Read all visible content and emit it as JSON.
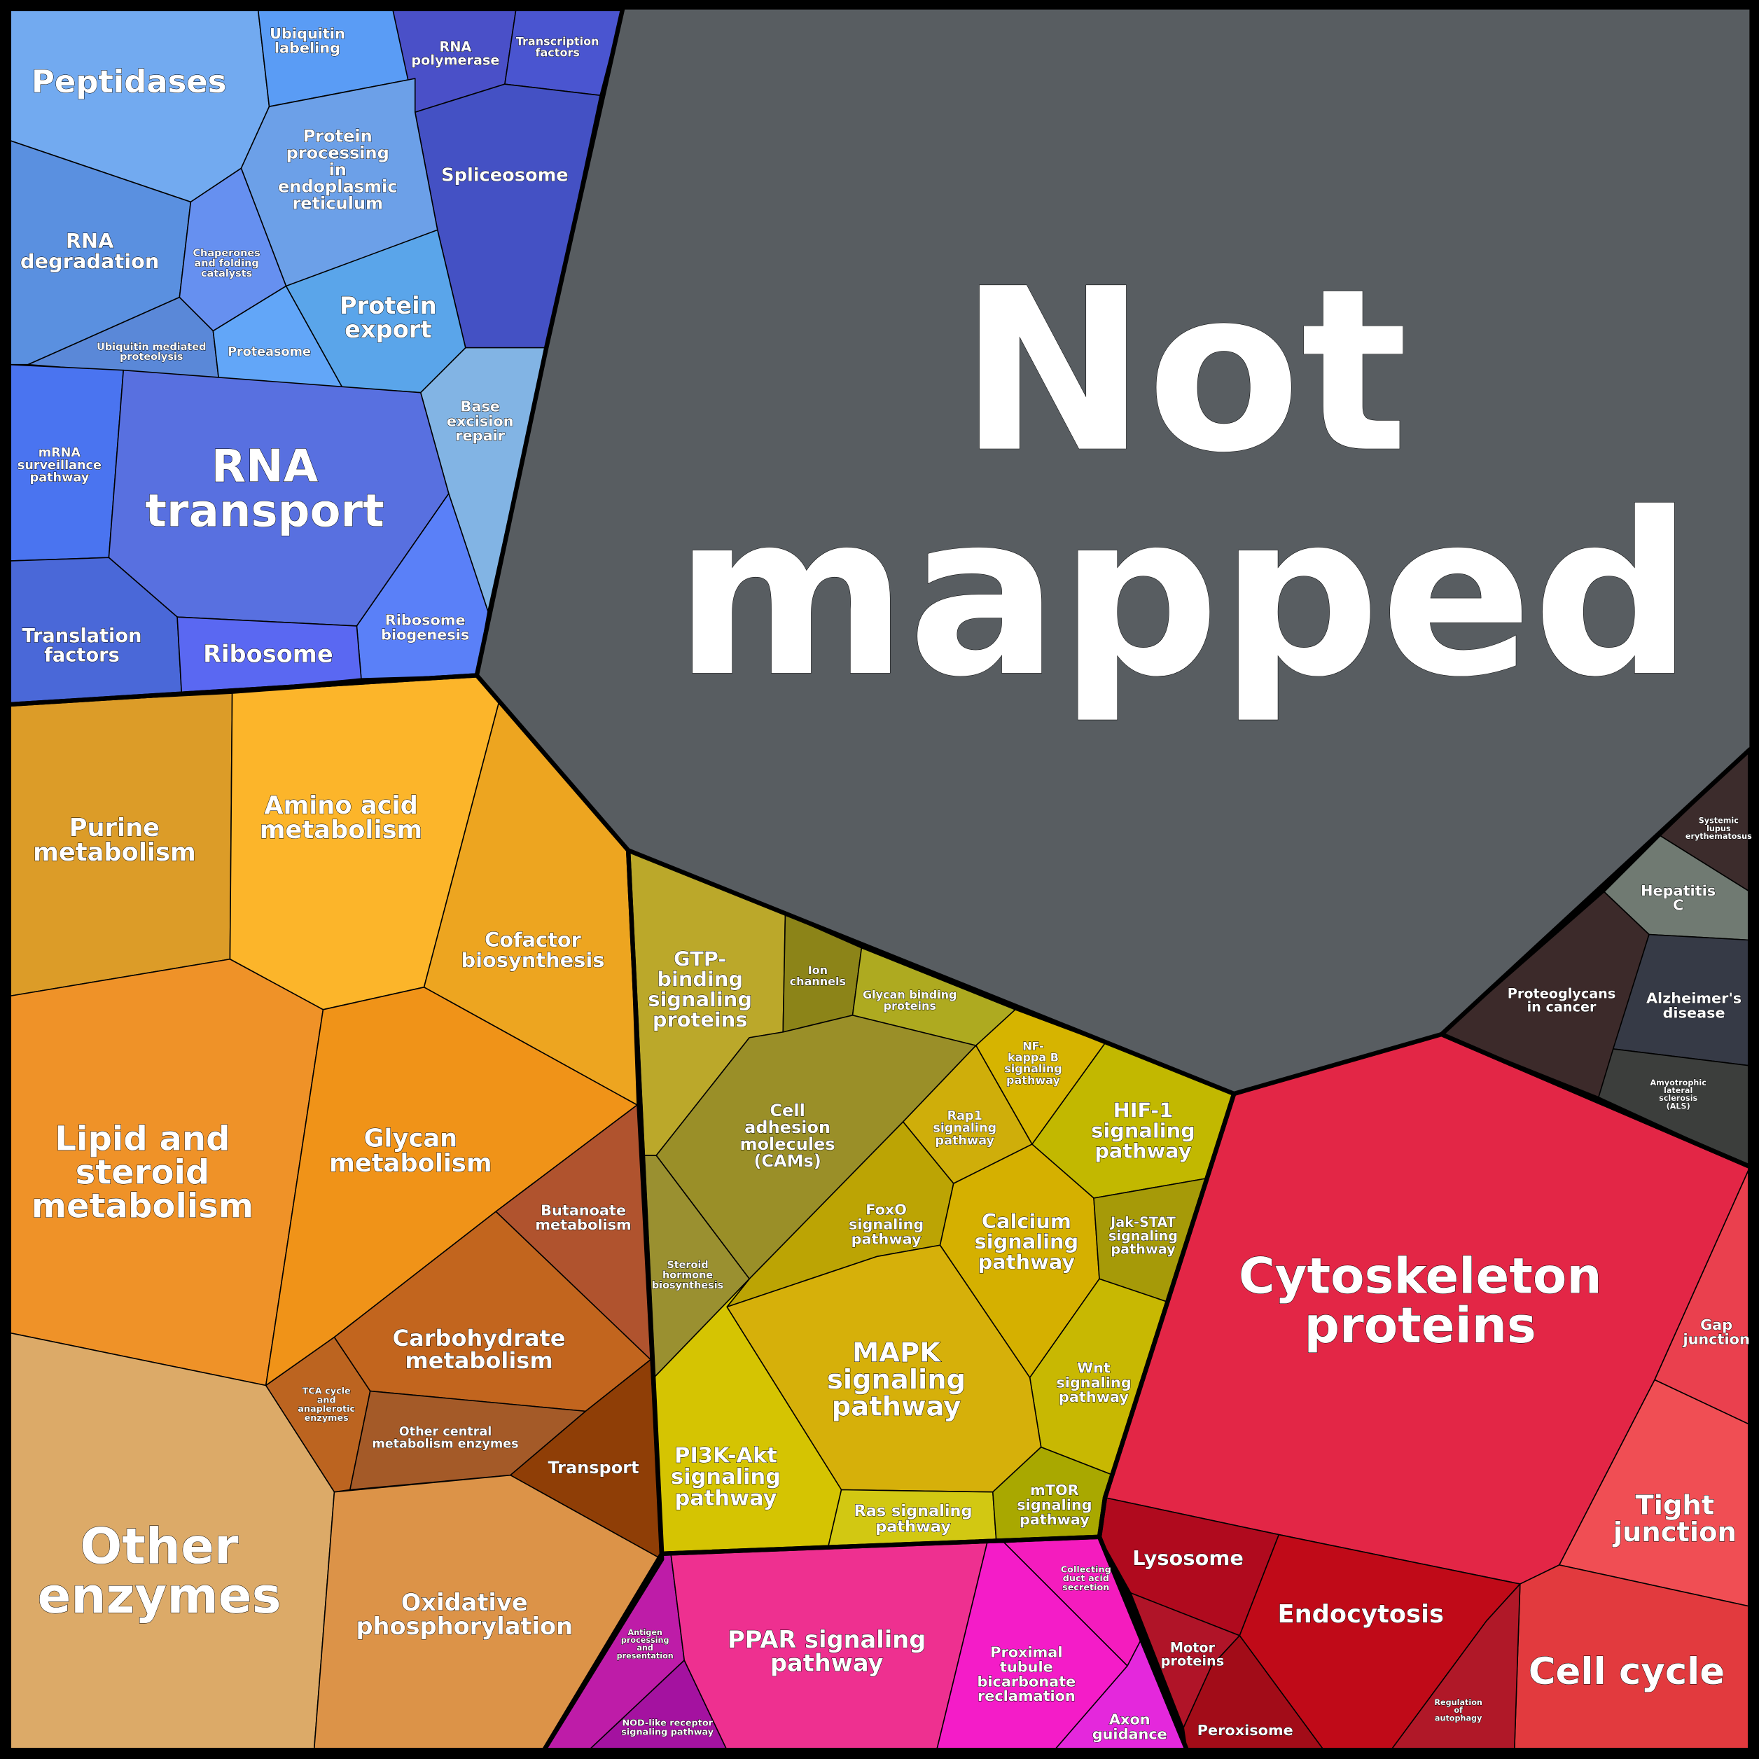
{
  "cells": [
    {
      "label": [
        "Peptidases"
      ]
    },
    {
      "label": [
        "Ubiquitin",
        "labeling"
      ]
    },
    {
      "label": [
        "RNA",
        "polymerase"
      ]
    },
    {
      "label": [
        "Transcription",
        "factors"
      ]
    },
    {
      "label": [
        "Spliceosome"
      ]
    },
    {
      "label": [
        "Protein",
        "processing",
        "in",
        "endoplasmic",
        "reticulum"
      ]
    },
    {
      "label": [
        "RNA",
        "degradation"
      ]
    },
    {
      "label": [
        "Chaperones",
        "and folding",
        "catalysts"
      ]
    },
    {
      "label": [
        "Ubiquitin mediated",
        "proteolysis"
      ]
    },
    {
      "label": [
        "Proteasome"
      ]
    },
    {
      "label": [
        "Protein",
        "export"
      ]
    },
    {
      "label": [
        "Base",
        "excision",
        "repair"
      ]
    },
    {
      "label": [
        "mRNA",
        "surveillance",
        "pathway"
      ]
    },
    {
      "label": [
        "RNA",
        "transport"
      ]
    },
    {
      "label": [
        "Ribosome",
        "biogenesis"
      ]
    },
    {
      "label": [
        "Translation",
        "factors"
      ]
    },
    {
      "label": [
        "Ribosome"
      ]
    },
    {
      "label": [
        "Purine",
        "metabolism"
      ]
    },
    {
      "label": [
        "Amino acid",
        "metabolism"
      ]
    },
    {
      "label": [
        "Cofactor",
        "biosynthesis"
      ]
    },
    {
      "label": [
        "Lipid and",
        "steroid",
        "metabolism"
      ]
    },
    {
      "label": [
        "Glycan",
        "metabolism"
      ]
    },
    {
      "label": [
        "Butanoate",
        "metabolism"
      ]
    },
    {
      "label": [
        "Carbohydrate",
        "metabolism"
      ]
    },
    {
      "label": [
        "TCA cycle",
        "and",
        "anaplerotic",
        "enzymes"
      ]
    },
    {
      "label": [
        "Other central",
        "metabolism enzymes"
      ]
    },
    {
      "label": [
        "Transport"
      ]
    },
    {
      "label": [
        "Other",
        "enzymes"
      ]
    },
    {
      "label": [
        "Oxidative",
        "phosphorylation"
      ]
    },
    {
      "label": [
        "GTP-",
        "binding",
        "signaling",
        "proteins"
      ]
    },
    {
      "label": [
        "Ion",
        "channels"
      ]
    },
    {
      "label": [
        "Glycan binding",
        "proteins"
      ]
    },
    {
      "label": [
        "Cell",
        "adhesion",
        "molecules",
        "(CAMs)"
      ]
    },
    {
      "label": [
        "Steroid",
        "hormone",
        "biosynthesis"
      ]
    },
    {
      "label": [
        "NF-",
        "kappa B",
        "signaling",
        "pathway"
      ]
    },
    {
      "label": [
        "HIF-1",
        "signaling",
        "pathway"
      ]
    },
    {
      "label": [
        "Rap1",
        "signaling",
        "pathway"
      ]
    },
    {
      "label": [
        "FoxO",
        "signaling",
        "pathway"
      ]
    },
    {
      "label": [
        "Calcium",
        "signaling",
        "pathway"
      ]
    },
    {
      "label": [
        "Jak-STAT",
        "signaling",
        "pathway"
      ]
    },
    {
      "label": [
        "Wnt",
        "signaling",
        "pathway"
      ]
    },
    {
      "label": [
        "MAPK",
        "signaling",
        "pathway"
      ]
    },
    {
      "label": [
        "PI3K-Akt",
        "signaling",
        "pathway"
      ]
    },
    {
      "label": [
        "Ras signaling",
        "pathway"
      ]
    },
    {
      "label": [
        "mTOR",
        "signaling",
        "pathway"
      ]
    },
    {
      "label": [
        "Antigen",
        "processing",
        "and",
        "presentation"
      ]
    },
    {
      "label": [
        "NOD-like receptor",
        "signaling pathway"
      ]
    },
    {
      "label": [
        "PPAR signaling",
        "pathway"
      ]
    },
    {
      "label": [
        "Collecting",
        "duct acid",
        "secretion"
      ]
    },
    {
      "label": [
        "Proximal",
        "tubule",
        "bicarbonate",
        "reclamation"
      ]
    },
    {
      "label": [
        "Axon",
        "guidance"
      ]
    },
    {
      "label": [
        "Cytoskeleton",
        "proteins"
      ]
    },
    {
      "label": [
        "Gap",
        "junction"
      ]
    },
    {
      "label": [
        "Tight",
        "junction"
      ]
    },
    {
      "label": [
        "Cell cycle"
      ]
    },
    {
      "label": [
        "Lysosome"
      ]
    },
    {
      "label": [
        "Motor",
        "proteins"
      ]
    },
    {
      "label": [
        "Endocytosis"
      ]
    },
    {
      "label": [
        "Peroxisome"
      ]
    },
    {
      "label": [
        "Regulation",
        "of",
        "autophagy"
      ]
    },
    {
      "label": [
        "Systemic",
        "lupus",
        "erythematosus"
      ]
    },
    {
      "label": [
        "Hepatitis",
        "C"
      ]
    },
    {
      "label": [
        "Proteoglycans",
        "in cancer"
      ]
    },
    {
      "label": [
        "Alzheimer's",
        "disease"
      ]
    },
    {
      "label": [
        "Amyotrophic",
        "lateral",
        "sclerosis",
        "(ALS)"
      ]
    },
    {
      "label": [
        "Not",
        "mapped"
      ]
    }
  ]
}
